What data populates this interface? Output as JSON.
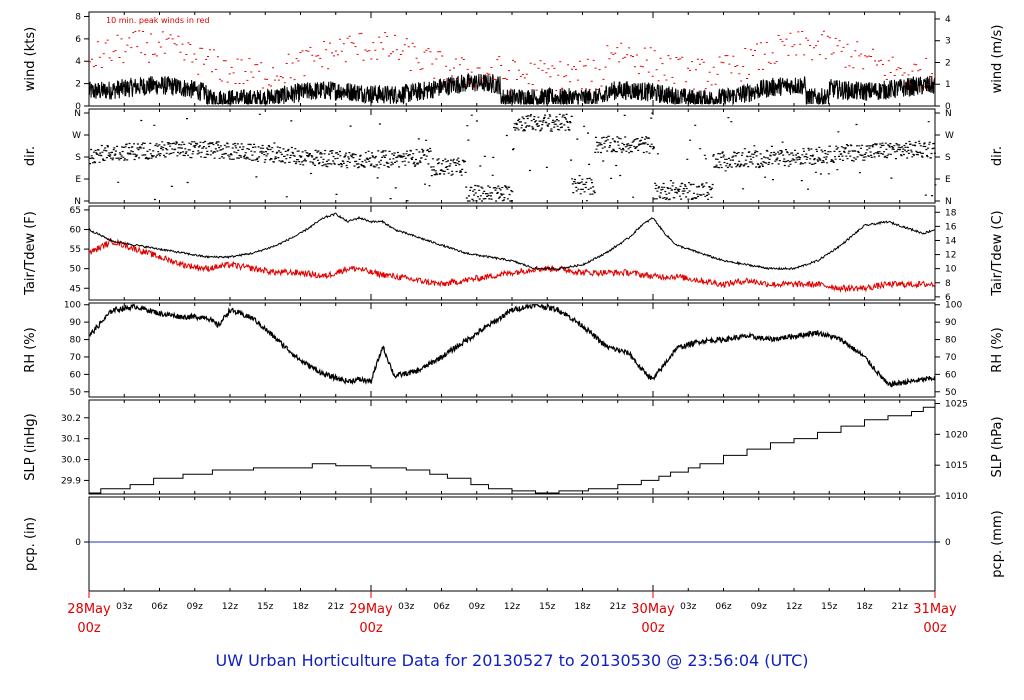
{
  "title": "UW Urban Horticulture Data for 20130527  to  20130530 @ 23:56:04  (UTC)",
  "time_axis": {
    "major_labels": [
      {
        "date": "28May",
        "hour": "00z",
        "hours": 0
      },
      {
        "date": "29May",
        "hour": "00z",
        "hours": 24
      },
      {
        "date": "30May",
        "hour": "00z",
        "hours": 48
      },
      {
        "date": "31May",
        "hour": "00z",
        "hours": 72
      }
    ],
    "minor_labels": [
      "03z",
      "06z",
      "09z",
      "12z",
      "15z",
      "18z",
      "21z"
    ],
    "span_hours": 72
  },
  "panels": {
    "wind": {
      "left_label": "wind (kts)",
      "right_label": "wind (m/s)",
      "left_ticks": [
        "0",
        "2",
        "4",
        "6",
        "8"
      ],
      "right_ticks": [
        "0",
        "1",
        "2",
        "3",
        "4"
      ],
      "annotation": "10 min. peak winds in red",
      "ylim": [
        0,
        8.4
      ]
    },
    "dir": {
      "left_label": "dir.",
      "right_label": "dir.",
      "ticks": [
        "N",
        "E",
        "S",
        "W",
        "N"
      ]
    },
    "temp": {
      "left_label": "Tair/Tdew (F)",
      "right_label": "Tair/Tdew (C)",
      "left_ticks": [
        "45",
        "50",
        "55",
        "60",
        "65"
      ],
      "right_ticks": [
        "6",
        "8",
        "10",
        "12",
        "14",
        "16",
        "18"
      ],
      "ylim": [
        42,
        66
      ]
    },
    "rh": {
      "left_label": "RH (%)",
      "right_label": "RH (%)",
      "ticks": [
        "50",
        "60",
        "70",
        "80",
        "90",
        "100"
      ],
      "ylim": [
        47,
        101
      ]
    },
    "slp": {
      "left_label": "SLP (inHg)",
      "right_label": "SLP (hPa)",
      "left_ticks": [
        "29.9",
        "30.0",
        "30.1",
        "30.2"
      ],
      "right_ticks": [
        "1010",
        "1015",
        "1020",
        "1025"
      ],
      "ylim": [
        29.835,
        30.285
      ]
    },
    "pcp": {
      "left_label": "pcp. (in)",
      "right_label": "pcp. (mm)",
      "left_ticks": [
        "0"
      ],
      "right_ticks": [
        "0"
      ]
    }
  },
  "chart_data": {
    "type": "line",
    "x_unit": "hours since 28May 00z",
    "colors": {
      "tair": "#000000",
      "tdew": "#e00000",
      "wind": "#000000",
      "gust": "#e00000",
      "pcp": "#2030c0"
    },
    "tair": {
      "x": [
        0,
        2,
        4,
        6,
        8,
        10,
        12,
        14,
        16,
        18,
        20,
        21,
        22,
        23,
        24,
        25,
        26,
        28,
        30,
        32,
        34,
        36,
        38,
        40,
        42,
        44,
        46,
        47,
        48,
        49,
        50,
        52,
        54,
        56,
        58,
        60,
        62,
        64,
        66,
        68,
        69,
        70,
        71,
        72
      ],
      "y": [
        60,
        57,
        56,
        55,
        54,
        53,
        53,
        54,
        56,
        59,
        63,
        64,
        62,
        63,
        62,
        62,
        60,
        58,
        56,
        54,
        53,
        52,
        50,
        50,
        51,
        54,
        58,
        61,
        63,
        59,
        56,
        54,
        52,
        51,
        50,
        50,
        52,
        56,
        61,
        62,
        61,
        60,
        59,
        60
      ]
    },
    "tdew": {
      "x": [
        0,
        2,
        4,
        6,
        8,
        10,
        12,
        14,
        16,
        18,
        20,
        22,
        23,
        24,
        26,
        28,
        30,
        32,
        34,
        36,
        38,
        40,
        42,
        44,
        46,
        48,
        50,
        52,
        54,
        56,
        58,
        60,
        62,
        64,
        66,
        68,
        70,
        72
      ],
      "y": [
        54,
        57,
        55,
        53,
        51,
        50,
        51,
        50,
        49,
        49,
        48,
        50,
        50,
        49,
        48,
        47,
        46,
        47,
        48,
        49,
        50,
        50,
        49,
        49,
        49,
        48,
        48,
        47,
        46,
        47,
        46,
        46,
        46,
        45,
        45,
        46,
        46,
        46
      ]
    },
    "rh": {
      "x": [
        0,
        2,
        4,
        6,
        8,
        10,
        11,
        12,
        14,
        16,
        18,
        20,
        22,
        23,
        24,
        25,
        26,
        28,
        30,
        32,
        34,
        36,
        38,
        40,
        42,
        44,
        46,
        47,
        48,
        50,
        52,
        54,
        56,
        58,
        60,
        62,
        64,
        66,
        68,
        70,
        72
      ],
      "y": [
        82,
        97,
        99,
        95,
        93,
        93,
        88,
        97,
        92,
        80,
        68,
        60,
        56,
        57,
        56,
        76,
        59,
        62,
        70,
        79,
        88,
        97,
        100,
        97,
        88,
        76,
        72,
        63,
        57,
        75,
        79,
        80,
        82,
        80,
        82,
        84,
        80,
        70,
        54,
        56,
        58
      ]
    },
    "slp": {
      "x": [
        0,
        1,
        3.5,
        5.5,
        8,
        10.5,
        14,
        16,
        18,
        19,
        21,
        24,
        27,
        29,
        30.5,
        32.5,
        34,
        36,
        38,
        40,
        42.5,
        45,
        47,
        48.5,
        49.5,
        51,
        52,
        54,
        56,
        58,
        60,
        62,
        64,
        66,
        68,
        70,
        71,
        72
      ],
      "y": [
        29.84,
        29.86,
        29.88,
        29.91,
        29.93,
        29.95,
        29.96,
        29.96,
        29.96,
        29.98,
        29.97,
        29.96,
        29.95,
        29.93,
        29.91,
        29.88,
        29.86,
        29.85,
        29.84,
        29.85,
        29.86,
        29.88,
        29.9,
        29.92,
        29.94,
        29.96,
        29.98,
        30.02,
        30.05,
        30.08,
        30.1,
        30.13,
        30.16,
        30.19,
        30.21,
        30.23,
        30.25,
        30.27
      ]
    },
    "pcp": {
      "x": [
        0,
        72
      ],
      "y": [
        0,
        0
      ]
    }
  }
}
